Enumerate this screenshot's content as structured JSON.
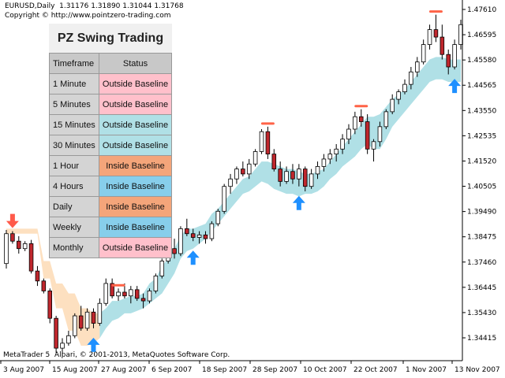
{
  "header": {
    "symbol_line": "EURUSD,Daily  1.31176 1.31890 1.31044 1.31768",
    "copyright": "Copyright © http://www.pointzero-trading.com"
  },
  "panel": {
    "title": "PZ Swing Trading",
    "col_timeframe": "Timeframe",
    "col_status": "Status",
    "rows": [
      {
        "timeframe": "1 Minute",
        "status": "Outside Baseline",
        "color": "#ffc0cb"
      },
      {
        "timeframe": "5 Minutes",
        "status": "Outside Baseline",
        "color": "#ffc0cb"
      },
      {
        "timeframe": "15 Minutes",
        "status": "Outside Baseline",
        "color": "#b0e0e6"
      },
      {
        "timeframe": "30 Minutes",
        "status": "Outside Baseline",
        "color": "#b0e0e6"
      },
      {
        "timeframe": "1 Hour",
        "status": "Inside Baseline",
        "color": "#f4a57a"
      },
      {
        "timeframe": "4 Hours",
        "status": "Inside Baseline",
        "color": "#87ceeb"
      },
      {
        "timeframe": "Daily",
        "status": "Inside Baseline",
        "color": "#f4a57a"
      },
      {
        "timeframe": "Weekly",
        "status": "Inside Baseline",
        "color": "#87ceeb"
      },
      {
        "timeframe": "Monthly",
        "status": "Outside Baseline",
        "color": "#ffc0cb"
      }
    ]
  },
  "footer": "MetaTrader 5  Alpari, © 2001-2013, MetaQuotes Software Corp.",
  "chart_data": {
    "type": "candlestick",
    "price_axis": [
      "1.47610",
      "1.46595",
      "1.45580",
      "1.44565",
      "1.43550",
      "1.42535",
      "1.41520",
      "1.40505",
      "1.39490",
      "1.38475",
      "1.37460",
      "1.36445",
      "1.35430",
      "1.34415"
    ],
    "time_axis": [
      "3 Aug 2007",
      "15 Aug 2007",
      "27 Aug 2007",
      "6 Sep 2007",
      "18 Sep 2007",
      "28 Sep 2007",
      "10 Oct 2007",
      "22 Oct 2007",
      "1 Nov 2007",
      "13 Nov 2007"
    ],
    "colors": {
      "bull_candle": "#ffffff",
      "bear_candle": "#c0272d",
      "baseline_above": "#fde0c0",
      "baseline_below": "#b0e0e6",
      "up_arrow": "#1e90ff",
      "down_arrow": "#ff5a4a",
      "swing_high": "#ff6347"
    },
    "candles": [
      [
        1.374,
        1.3875,
        1.372,
        1.386
      ],
      [
        1.386,
        1.387,
        1.382,
        1.383
      ],
      [
        1.383,
        1.385,
        1.378,
        1.38
      ],
      [
        1.38,
        1.383,
        1.379,
        1.382
      ],
      [
        1.382,
        1.3835,
        1.37,
        1.371
      ],
      [
        1.371,
        1.373,
        1.365,
        1.367
      ],
      [
        1.367,
        1.368,
        1.362,
        1.363
      ],
      [
        1.363,
        1.364,
        1.35,
        1.352
      ],
      [
        1.352,
        1.353,
        1.338,
        1.34
      ],
      [
        1.34,
        1.344,
        1.337,
        1.342
      ],
      [
        1.342,
        1.347,
        1.341,
        1.345
      ],
      [
        1.345,
        1.354,
        1.344,
        1.353
      ],
      [
        1.353,
        1.357,
        1.347,
        1.348
      ],
      [
        1.348,
        1.356,
        1.347,
        1.3545
      ],
      [
        1.3545,
        1.356,
        1.348,
        1.35
      ],
      [
        1.35,
        1.36,
        1.349,
        1.358
      ],
      [
        1.358,
        1.368,
        1.357,
        1.366
      ],
      [
        1.366,
        1.368,
        1.36,
        1.361
      ],
      [
        1.361,
        1.364,
        1.359,
        1.3625
      ],
      [
        1.3625,
        1.366,
        1.36,
        1.361
      ],
      [
        1.361,
        1.365,
        1.358,
        1.3635
      ],
      [
        1.3635,
        1.365,
        1.359,
        1.36
      ],
      [
        1.36,
        1.362,
        1.356,
        1.359
      ],
      [
        1.359,
        1.364,
        1.358,
        1.363
      ],
      [
        1.363,
        1.37,
        1.362,
        1.369
      ],
      [
        1.369,
        1.376,
        1.368,
        1.375
      ],
      [
        1.375,
        1.381,
        1.374,
        1.38
      ],
      [
        1.38,
        1.384,
        1.376,
        1.378
      ],
      [
        1.378,
        1.389,
        1.377,
        1.388
      ],
      [
        1.388,
        1.392,
        1.385,
        1.386
      ],
      [
        1.386,
        1.388,
        1.383,
        1.3845
      ],
      [
        1.3845,
        1.387,
        1.382,
        1.3855
      ],
      [
        1.3855,
        1.387,
        1.382,
        1.384
      ],
      [
        1.384,
        1.391,
        1.383,
        1.39
      ],
      [
        1.39,
        1.396,
        1.389,
        1.395
      ],
      [
        1.395,
        1.406,
        1.394,
        1.405
      ],
      [
        1.405,
        1.41,
        1.402,
        1.408
      ],
      [
        1.408,
        1.413,
        1.406,
        1.412
      ],
      [
        1.412,
        1.415,
        1.409,
        1.41
      ],
      [
        1.41,
        1.416,
        1.408,
        1.414
      ],
      [
        1.414,
        1.42,
        1.413,
        1.419
      ],
      [
        1.419,
        1.428,
        1.418,
        1.427
      ],
      [
        1.427,
        1.429,
        1.416,
        1.418
      ],
      [
        1.418,
        1.42,
        1.411,
        1.412
      ],
      [
        1.412,
        1.415,
        1.405,
        1.407
      ],
      [
        1.407,
        1.413,
        1.406,
        1.411
      ],
      [
        1.411,
        1.414,
        1.406,
        1.408
      ],
      [
        1.408,
        1.414,
        1.405,
        1.412
      ],
      [
        1.412,
        1.413,
        1.403,
        1.405
      ],
      [
        1.405,
        1.412,
        1.404,
        1.41
      ],
      [
        1.41,
        1.415,
        1.408,
        1.413
      ],
      [
        1.413,
        1.418,
        1.411,
        1.416
      ],
      [
        1.416,
        1.42,
        1.414,
        1.418
      ],
      [
        1.418,
        1.422,
        1.415,
        1.42
      ],
      [
        1.42,
        1.426,
        1.418,
        1.424
      ],
      [
        1.424,
        1.43,
        1.422,
        1.428
      ],
      [
        1.428,
        1.435,
        1.426,
        1.433
      ],
      [
        1.433,
        1.436,
        1.429,
        1.431
      ],
      [
        1.431,
        1.434,
        1.418,
        1.42
      ],
      [
        1.42,
        1.424,
        1.415,
        1.423
      ],
      [
        1.423,
        1.431,
        1.421,
        1.429
      ],
      [
        1.429,
        1.436,
        1.428,
        1.435
      ],
      [
        1.435,
        1.442,
        1.434,
        1.44
      ],
      [
        1.44,
        1.444,
        1.438,
        1.443
      ],
      [
        1.443,
        1.448,
        1.442,
        1.446
      ],
      [
        1.446,
        1.453,
        1.444,
        1.451
      ],
      [
        1.451,
        1.457,
        1.449,
        1.455
      ],
      [
        1.455,
        1.464,
        1.454,
        1.462
      ],
      [
        1.462,
        1.47,
        1.46,
        1.468
      ],
      [
        1.468,
        1.474,
        1.463,
        1.465
      ],
      [
        1.465,
        1.47,
        1.456,
        1.458
      ],
      [
        1.458,
        1.46,
        1.45,
        1.453
      ],
      [
        1.453,
        1.464,
        1.452,
        1.462
      ],
      [
        1.462,
        1.472,
        1.46,
        1.47
      ]
    ],
    "baseline_upper": [
      1.388,
      1.388,
      1.388,
      1.388,
      1.388,
      1.388,
      1.375,
      1.375,
      1.366,
      1.366,
      1.362,
      1.362,
      1.356,
      1.356,
      1.354,
      1.354,
      1.356,
      1.359,
      1.359,
      1.36,
      1.361,
      1.361,
      1.362,
      1.366,
      1.368,
      1.373,
      1.376,
      1.38,
      1.385,
      1.388,
      1.388,
      1.389,
      1.39,
      1.394,
      1.396,
      1.399,
      1.402,
      1.405,
      1.408,
      1.409,
      1.412,
      1.415,
      1.415,
      1.414,
      1.413,
      1.412,
      1.412,
      1.411,
      1.41,
      1.41,
      1.411,
      1.412,
      1.415,
      1.418,
      1.421,
      1.424,
      1.427,
      1.43,
      1.433,
      1.433,
      1.434,
      1.437,
      1.44,
      1.442,
      1.444,
      1.447,
      1.45,
      1.453,
      1.456,
      1.457,
      1.457,
      1.456,
      1.456,
      1.456
    ],
    "baseline_lower": [
      1.386,
      1.386,
      1.386,
      1.386,
      1.386,
      1.386,
      1.368,
      1.368,
      1.356,
      1.356,
      1.347,
      1.347,
      1.341,
      1.341,
      1.342,
      1.344,
      1.348,
      1.351,
      1.352,
      1.354,
      1.354,
      1.355,
      1.356,
      1.358,
      1.36,
      1.362,
      1.366,
      1.37,
      1.376,
      1.379,
      1.38,
      1.382,
      1.384,
      1.387,
      1.39,
      1.393,
      1.396,
      1.399,
      1.402,
      1.403,
      1.405,
      1.407,
      1.406,
      1.404,
      1.403,
      1.402,
      1.402,
      1.401,
      1.402,
      1.402,
      1.403,
      1.405,
      1.408,
      1.41,
      1.413,
      1.415,
      1.417,
      1.42,
      1.422,
      1.42,
      1.42,
      1.424,
      1.429,
      1.432,
      1.435,
      1.438,
      1.441,
      1.444,
      1.447,
      1.448,
      1.448,
      1.447,
      1.447,
      1.447
    ],
    "baseline_color_switch_index": 15,
    "up_arrows_at": [
      14,
      30,
      47,
      72
    ],
    "down_arrows_at": [
      1
    ],
    "swing_highs_at": [
      18,
      42,
      57,
      69
    ]
  }
}
